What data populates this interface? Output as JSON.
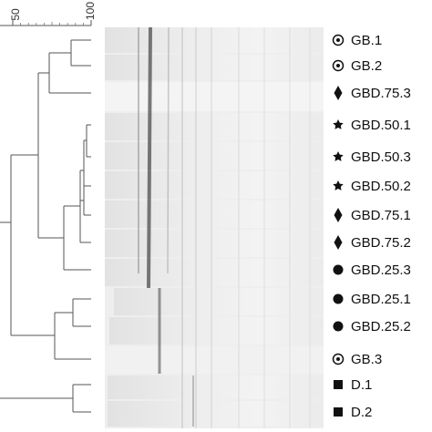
{
  "scale": {
    "ticks": [
      "50",
      "100"
    ]
  },
  "lanes": [
    {
      "label": "GB.1",
      "marker": "circle-dot-icon"
    },
    {
      "label": "GB.2",
      "marker": "circle-dot-icon"
    },
    {
      "label": "GBD.75.3",
      "marker": "diamond-icon"
    },
    {
      "label": "GBD.50.1",
      "marker": "star-icon"
    },
    {
      "label": "GBD.50.3",
      "marker": "star-icon"
    },
    {
      "label": "GBD.50.2",
      "marker": "star-icon"
    },
    {
      "label": "GBD.75.1",
      "marker": "diamond-icon"
    },
    {
      "label": "GBD.75.2",
      "marker": "diamond-icon"
    },
    {
      "label": "GBD.25.3",
      "marker": "filled-circle-icon"
    },
    {
      "label": "GBD.25.1",
      "marker": "filled-circle-icon"
    },
    {
      "label": "GBD.25.2",
      "marker": "filled-circle-icon"
    },
    {
      "label": "GB.3",
      "marker": "circle-dot-icon"
    },
    {
      "label": "D.1",
      "marker": "square-icon"
    },
    {
      "label": "D.2",
      "marker": "square-icon"
    }
  ],
  "colors": {
    "line": "#555555",
    "marker": "#111111"
  }
}
